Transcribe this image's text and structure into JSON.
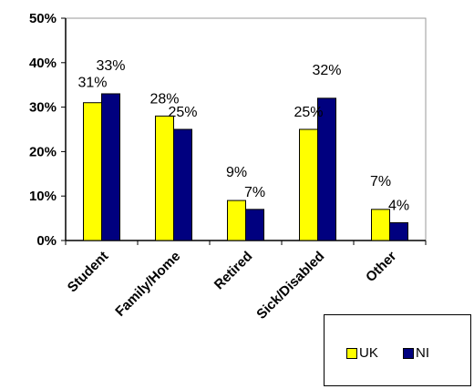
{
  "chart_data": {
    "type": "bar",
    "categories": [
      "Student",
      "Family/Home",
      "Retired",
      "Sick/Disabled",
      "Other"
    ],
    "series": [
      {
        "name": "UK",
        "values": [
          31,
          28,
          9,
          25,
          7
        ],
        "labels": [
          "31%",
          "28%",
          "9%",
          "25%",
          "7%"
        ],
        "color": "#ffff00"
      },
      {
        "name": "NI",
        "values": [
          33,
          25,
          7,
          32,
          4
        ],
        "labels": [
          "33%",
          "25%",
          "7%",
          "32%",
          "4%"
        ],
        "color": "#00007f"
      }
    ],
    "ylim": [
      0,
      50
    ],
    "yticks": [
      0,
      10,
      20,
      30,
      40,
      50
    ],
    "ytick_labels": [
      "0%",
      "10%",
      "20%",
      "30%",
      "40%",
      "50%"
    ],
    "title": "",
    "xlabel": "",
    "ylabel": "",
    "grid": false,
    "legend_position": "bottom-right"
  },
  "legend": {
    "uk_label": "UK",
    "ni_label": "NI"
  }
}
